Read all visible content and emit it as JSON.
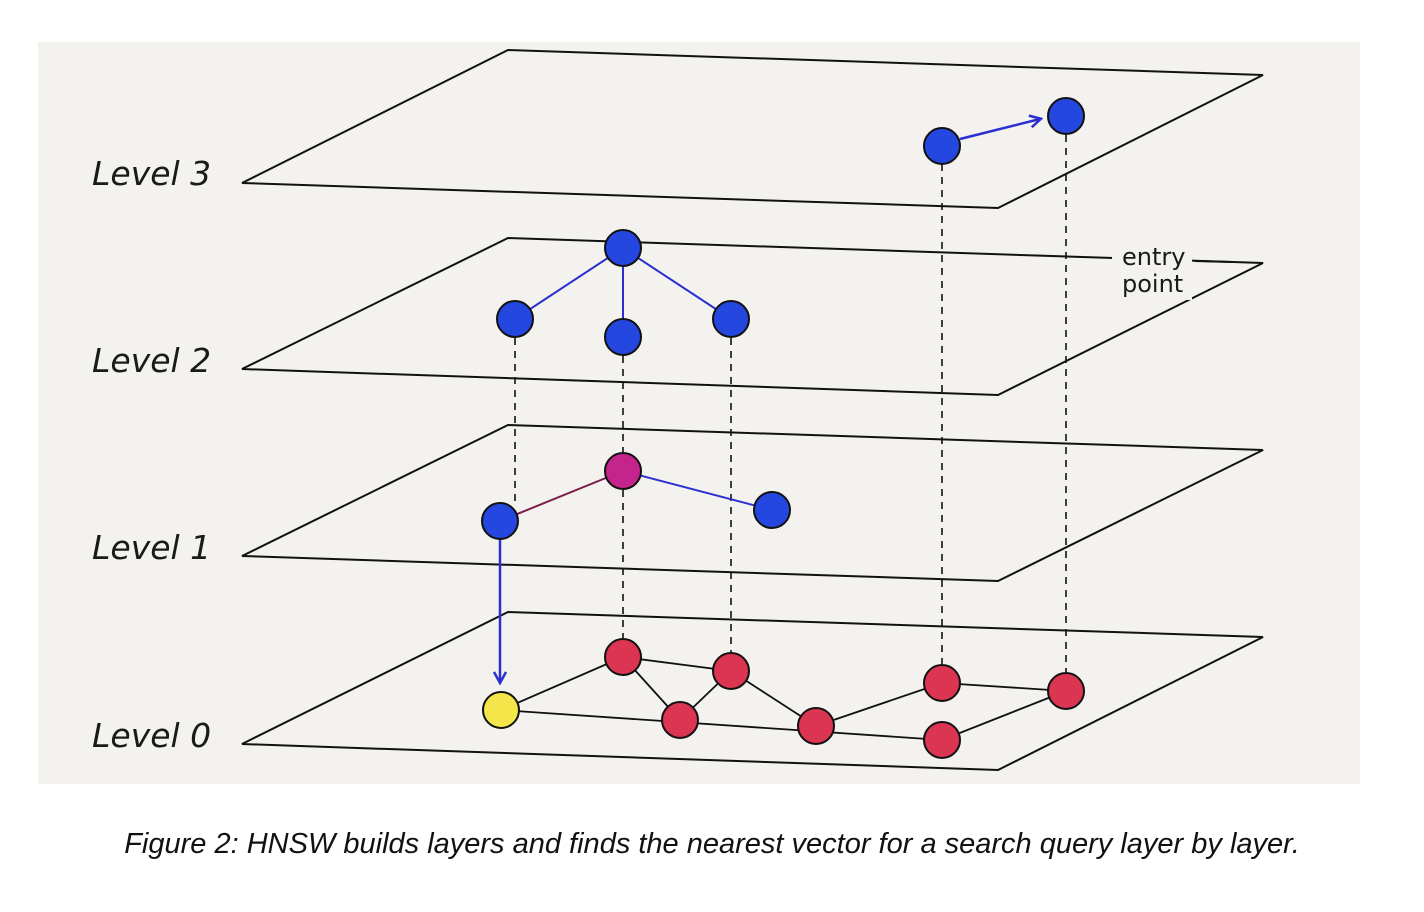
{
  "labels": {
    "level3": "Level 3",
    "level2": "Level 2",
    "level1": "Level 1",
    "level0": "Level 0",
    "entry_line1": "entry",
    "entry_line2": "point"
  },
  "caption": "Figure 2: HNSW builds layers and finds the nearest vector for a search query layer by layer.",
  "colors": {
    "background": "#f3f2ef",
    "upper_node": "#2447e0",
    "level1_hub": "#c4248c",
    "level0_node": "#dc3552",
    "query_node": "#f4e64a",
    "edge_blue": "#2a2fd0",
    "edge_purple": "#7a1f4a",
    "edge_black": "#111111"
  }
}
